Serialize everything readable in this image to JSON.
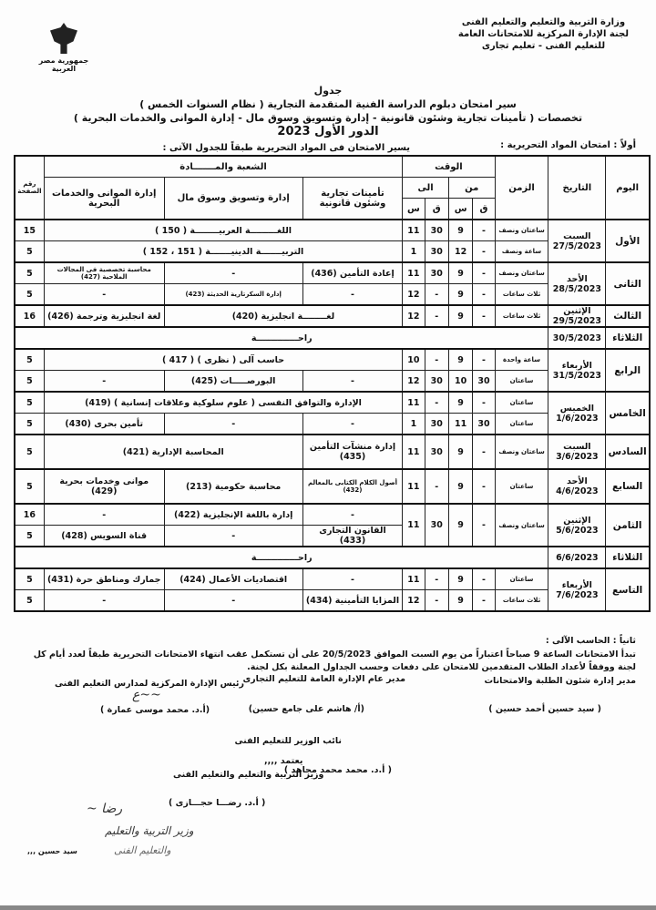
{
  "header": {
    "ministry_lines": [
      "وزارة التربية والتعليم والتعليم الفنى",
      "لجنة الإدارة المركزية للامتحانات العامة",
      "للتعليم الفنى - تعليم تجارى"
    ],
    "logo_text": "جمهورية مصر العربية"
  },
  "title": {
    "line1": "جدول",
    "line2": "سير امتحان دبلوم الدراسة الفنية المتقدمة التجارية ( نظام السنوات الخمس )",
    "line3": "تخصصات ( تأمينات تجارية وشئون قانونية - إدارة وتسويق وسوق مال - إدارة الموانى والخدمات البحرية )",
    "line4": "الدور الأول 2023"
  },
  "section1_label": "أولاً : امتحان المواد التحريرية :",
  "section1_note": "يسير الامتحان فى المواد التحريرية طبقاً للجدول الآتى :",
  "table": {
    "headers": {
      "day": "اليوم",
      "date": "التاريخ",
      "duration": "الزمن",
      "time": "الوقت",
      "from": "من",
      "to": "الى",
      "q": "ق",
      "s": "س",
      "branch": "الشعبة والمـــــــادة",
      "col1": "تأمينات تجارية وشئون قانونية",
      "col2": "إدارة وتسويق وسوق مال",
      "col3": "إدارة الموانى والخدمات البحرية",
      "pages": "رقم الصفحة"
    },
    "rows": [
      [
        {
          "t": "الأول",
          "rs": 2,
          "c": "day"
        },
        {
          "t": "السبت 27/5/2023",
          "rs": 2
        },
        {
          "t": "ساعتان ونصف",
          "c": "sm"
        },
        "-",
        "9",
        "30",
        "11",
        {
          "t": "اللغـــــــــة العربيــــــــة ( 150 )",
          "cs": 3
        },
        "15"
      ],
      [
        {
          "t": "ساعة ونصف",
          "c": "sm"
        },
        "-",
        "12",
        "30",
        "1",
        {
          "t": "التربيـــــــة الدينيـــــــة ( 151 ، 152 )",
          "cs": 3
        },
        "5"
      ],
      [
        {
          "t": "الثانى",
          "rs": 2,
          "c": "day"
        },
        {
          "t": "الأحد 28/5/2023",
          "rs": 2
        },
        {
          "t": "ساعتان ونصف",
          "c": "sm"
        },
        "-",
        "9",
        "30",
        "11",
        "إعادة التأمين (436)",
        "-",
        {
          "t": "محاسبة تخصصية فى المجالات الملاحية (427)",
          "c": "sm"
        },
        "5"
      ],
      [
        {
          "t": "ثلاث ساعات",
          "c": "sm"
        },
        "-",
        "9",
        "-",
        "12",
        "-",
        {
          "t": "إدارة السكرتارية الحديثة (423)",
          "c": "sm"
        },
        "-",
        "5"
      ],
      [
        {
          "t": "الثالث",
          "c": "day"
        },
        {
          "t": "الإثنين 29/5/2023"
        },
        {
          "t": "ثلاث ساعات",
          "c": "sm"
        },
        "-",
        "9",
        "-",
        "12",
        {
          "t": "لغــــــــة انجليزية (420)",
          "cs": 2
        },
        "لغة انجليزية وترجمة (426)",
        "16"
      ],
      [
        {
          "t": "الثلاثاء",
          "c": "day"
        },
        "30/5/2023",
        {
          "t": "راحــــــــــــــة",
          "cs": 9
        }
      ],
      [
        {
          "t": "الرابع",
          "rs": 2,
          "c": "day"
        },
        {
          "t": "الأربعاء 31/5/2023",
          "rs": 2
        },
        {
          "t": "ساعة واحدة",
          "c": "sm"
        },
        "-",
        "9",
        "-",
        "10",
        {
          "t": "حاسب آلى ( نظرى ) ( 417 )",
          "cs": 3
        },
        "5"
      ],
      [
        {
          "t": "ساعتان",
          "c": "sm"
        },
        "30",
        "10",
        "30",
        "12",
        "-",
        "البورصـــــات (425)",
        "-",
        "5"
      ],
      [
        {
          "t": "الخامس",
          "rs": 2,
          "c": "day"
        },
        {
          "t": "الخميس 1/6/2023",
          "rs": 2
        },
        {
          "t": "ساعتان",
          "c": "sm"
        },
        "-",
        "9",
        "-",
        "11",
        {
          "t": "الإدارة والتوافق النفسى ( علوم سلوكية وعلاقات إنسانية ) (419)",
          "cs": 3
        },
        "5"
      ],
      [
        {
          "t": "ساعتان",
          "c": "sm"
        },
        "30",
        "11",
        "30",
        "1",
        "-",
        "-",
        "تأمين بحرى (430)",
        "5"
      ],
      [
        {
          "t": "السادس",
          "c": "day",
          "h": 36
        },
        {
          "t": "السبت 3/6/2023"
        },
        {
          "t": "ساعتان ونصف",
          "c": "sm"
        },
        "-",
        "9",
        "30",
        "11",
        "إدارة منشآت التأمين (435)",
        {
          "t": "المحاسبة الإدارية (421)",
          "cs": 2
        },
        "5"
      ],
      [
        {
          "t": "السابع",
          "c": "day",
          "h": 36
        },
        {
          "t": "الأحد 4/6/2023"
        },
        {
          "t": "ساعتان",
          "c": "sm"
        },
        "-",
        "9",
        "-",
        "11",
        {
          "t": "أصول الكلام الكتابى بالمعالم (432)",
          "c": "sm"
        },
        "محاسبة حكومية (213)",
        "موانى وخدمات بحرية (429)",
        "5"
      ],
      [
        {
          "t": "الثامن",
          "rs": 2,
          "c": "day"
        },
        {
          "t": "الإثنين 5/6/2023",
          "rs": 2
        },
        {
          "t": "ساعتان ونصف",
          "c": "sm",
          "rs": 2
        },
        {
          "t": "-",
          "rs": 2
        },
        {
          "t": "9",
          "rs": 2
        },
        {
          "t": "30",
          "rs": 2
        },
        {
          "t": "11",
          "rs": 2
        },
        "-",
        "إدارة باللغة الإنجليزية (422)",
        "-",
        "16"
      ],
      [
        "القانون التجارى (433)",
        "-",
        "قناة السويس (428)",
        "5"
      ],
      [
        {
          "t": "الثلاثاء",
          "c": "day"
        },
        "6/6/2023",
        {
          "t": "راحــــــــــــــة",
          "cs": 9
        }
      ],
      [
        {
          "t": "التاسع",
          "rs": 2,
          "c": "day"
        },
        {
          "t": "الأربعاء 7/6/2023",
          "rs": 2
        },
        {
          "t": "ساعتان",
          "c": "sm"
        },
        "-",
        "9",
        "-",
        "11",
        "-",
        "اقتصاديات الأعمال (424)",
        "جمارك ومناطق حرة (431)",
        "5"
      ],
      [
        {
          "t": "ثلاث ساعات",
          "c": "sm"
        },
        "-",
        "9",
        "-",
        "12",
        "المزايا التأمينية (434)",
        "-",
        "-",
        "5"
      ]
    ],
    "group_starts": [
      0,
      2,
      4,
      5,
      6,
      8,
      10,
      11,
      12,
      14,
      15
    ]
  },
  "footer": {
    "section2_label": "ثانياً : الحاسب الآلى :",
    "section2_text": "تبدأ الامتحانات الساعة 9 صباحاً اعتباراً من يوم السبت الموافق 20/5/2023 على أن تستكمل عقب انتهاء الامتحانات التحريرية طبقاً لعدد أيام كل لجنة ووفقاً لأعداد الطلاب المتقدمين للامتحان على دفعات وحسب الجداول المعلنة بكل لجنة.",
    "sig1_title": "مدير إدارة شئون الطلبة والامتحانات",
    "sig1_name": "( سيد حسين أحمد حسين )",
    "sig2_title": "مدير عام الإدارة العامة للتعليم التجارى",
    "sig2_name": "(أ/ هاشم على جامع حسين)",
    "sig3_title": "رئيس الإدارة المركزية لمدارس التعليم الفنى",
    "sig3_name": "(أ.د. محمد موسى عمارة )",
    "sig4_title": "نائب الوزير للتعليم الفنى",
    "sig4_name": "( أ.د. محمد محمد مجاهد )",
    "approve": "يعتمد ,,,,",
    "minister_title": "وزير التربية والتعليم والتعليم الفنى",
    "minister_name": "( أ.د. رضـــا حجـــازى )",
    "stamp_lines": [
      "وزير التربية والتعليم",
      "والتعليم الفنى"
    ],
    "close": "سيد حسين ,,,"
  }
}
